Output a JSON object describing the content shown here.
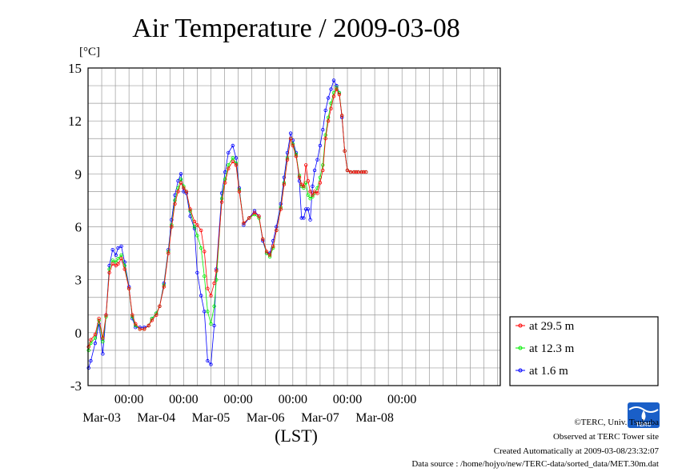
{
  "chart_data": {
    "type": "line",
    "title": "Air Temperature / 2009-03-08",
    "ylabel": "[°C]",
    "xlabel": "(LST)",
    "ylim": [
      -3,
      15
    ],
    "yticks": [
      -3,
      0,
      3,
      6,
      9,
      12,
      15
    ],
    "xlim": [
      -0.75,
      6.8
    ],
    "xticks": [
      {
        "x": 0,
        "time": "00:00",
        "date": "Mar-03"
      },
      {
        "x": 1,
        "time": "00:00",
        "date": "Mar-04"
      },
      {
        "x": 2,
        "time": "00:00",
        "date": "Mar-05"
      },
      {
        "x": 3,
        "time": "00:00",
        "date": "Mar-06"
      },
      {
        "x": 4,
        "time": "00:00",
        "date": "Mar-07"
      },
      {
        "x": 5,
        "time": "00:00",
        "date": "Mar-08"
      }
    ],
    "date_label_offset": 0.5,
    "grid": true,
    "legend_position": "right",
    "series": [
      {
        "name": "at 29.5 m",
        "color": "#ff0000",
        "x": [
          -0.74,
          -0.7,
          -0.62,
          -0.55,
          -0.48,
          -0.42,
          -0.36,
          -0.3,
          -0.24,
          -0.2,
          -0.14,
          -0.08,
          0,
          0.06,
          0.12,
          0.2,
          0.28,
          0.36,
          0.42,
          0.5,
          0.56,
          0.64,
          0.72,
          0.78,
          0.84,
          0.9,
          0.95,
          1.0,
          1.05,
          1.12,
          1.2,
          1.25,
          1.32,
          1.38,
          1.44,
          1.5,
          1.56,
          1.6,
          1.7,
          1.76,
          1.82,
          1.9,
          1.96,
          2.02,
          2.1,
          2.2,
          2.3,
          2.38,
          2.45,
          2.52,
          2.58,
          2.64,
          2.7,
          2.78,
          2.84,
          2.9,
          2.96,
          3.0,
          3.06,
          3.12,
          3.16,
          3.2,
          3.24,
          3.28,
          3.32,
          3.36,
          3.4,
          3.45,
          3.5,
          3.55,
          3.6,
          3.65,
          3.7,
          3.75,
          3.8,
          3.85,
          3.9,
          3.95,
          4.0,
          4.06,
          4.12,
          4.16,
          4.2,
          4.26,
          4.3,
          4.34
        ],
        "values": [
          -0.8,
          -0.4,
          -0.1,
          0.8,
          -0.3,
          1.0,
          3.4,
          3.9,
          3.8,
          3.9,
          4.2,
          3.6,
          2.5,
          1.0,
          0.5,
          0.2,
          0.2,
          0.4,
          0.7,
          1.0,
          1.5,
          2.6,
          4.5,
          6.0,
          7.3,
          8.0,
          8.5,
          8.2,
          8.0,
          7.0,
          6.3,
          6.1,
          5.8,
          4.6,
          2.5,
          2.1,
          2.8,
          3.5,
          7.4,
          8.5,
          9.3,
          9.7,
          9.5,
          8.0,
          6.2,
          6.5,
          6.8,
          6.6,
          5.3,
          4.6,
          4.4,
          4.9,
          5.8,
          7.0,
          8.4,
          9.8,
          11.0,
          10.6,
          10.0,
          8.8,
          8.4,
          8.3,
          9.5,
          8.6,
          8.0,
          7.8,
          8.0,
          7.9,
          8.5,
          9.2,
          11.0,
          12.0,
          12.7,
          13.4,
          13.8,
          13.5,
          12.3,
          10.3,
          9.2,
          9.1,
          9.1,
          9.1,
          9.1,
          9.1,
          9.1,
          9.1
        ]
      },
      {
        "name": "at 12.3 m",
        "color": "#00ee00",
        "x": [
          -0.74,
          -0.7,
          -0.62,
          -0.55,
          -0.48,
          -0.42,
          -0.36,
          -0.3,
          -0.24,
          -0.2,
          -0.14,
          -0.08,
          0,
          0.06,
          0.12,
          0.2,
          0.28,
          0.36,
          0.42,
          0.5,
          0.56,
          0.64,
          0.72,
          0.78,
          0.84,
          0.9,
          0.95,
          1.0,
          1.05,
          1.12,
          1.2,
          1.25,
          1.32,
          1.38,
          1.44,
          1.5,
          1.56,
          1.6,
          1.7,
          1.76,
          1.82,
          1.9,
          1.96,
          2.02,
          2.1,
          2.2,
          2.3,
          2.38,
          2.45,
          2.52,
          2.58,
          2.64,
          2.7,
          2.78,
          2.84,
          2.9,
          2.96,
          3.0,
          3.06,
          3.12,
          3.16,
          3.2,
          3.24,
          3.28,
          3.32,
          3.36,
          3.4,
          3.45,
          3.5,
          3.55,
          3.6,
          3.65,
          3.7,
          3.75,
          3.8,
          3.85,
          3.9,
          3.95,
          4.0,
          4.06,
          4.12,
          4.16,
          4.2,
          4.26,
          4.3,
          4.34
        ],
        "values": [
          -1.0,
          -0.6,
          -0.3,
          0.7,
          -0.5,
          0.9,
          3.6,
          4.1,
          4.0,
          4.2,
          4.4,
          3.8,
          2.5,
          0.9,
          0.4,
          0.2,
          0.2,
          0.4,
          0.8,
          1.1,
          1.5,
          2.7,
          4.6,
          6.1,
          7.5,
          8.2,
          8.7,
          8.3,
          8.0,
          6.9,
          6.0,
          5.5,
          4.8,
          3.2,
          1.2,
          0.5,
          1.5,
          3.0,
          7.6,
          8.7,
          9.5,
          9.9,
          9.6,
          8.1,
          6.2,
          6.5,
          6.7,
          6.5,
          5.3,
          4.5,
          4.3,
          4.8,
          5.8,
          7.1,
          8.5,
          9.9,
          11.0,
          10.7,
          10.1,
          8.9,
          8.3,
          8.2,
          8.5,
          7.8,
          7.6,
          7.7,
          7.9,
          8.2,
          8.8,
          9.5,
          11.2,
          12.2,
          13.0,
          13.6,
          13.9,
          13.6,
          12.3,
          10.3,
          9.2,
          9.1,
          9.1,
          9.1,
          9.1,
          9.1,
          9.1,
          9.1
        ]
      },
      {
        "name": "at 1.6 m",
        "color": "#0000ff",
        "x": [
          -0.74,
          -0.7,
          -0.62,
          -0.55,
          -0.48,
          -0.42,
          -0.36,
          -0.3,
          -0.24,
          -0.2,
          -0.14,
          -0.08,
          0,
          0.06,
          0.12,
          0.2,
          0.28,
          0.36,
          0.42,
          0.5,
          0.56,
          0.64,
          0.72,
          0.78,
          0.84,
          0.9,
          0.95,
          1.0,
          1.05,
          1.12,
          1.2,
          1.25,
          1.32,
          1.38,
          1.44,
          1.5,
          1.56,
          1.6,
          1.7,
          1.76,
          1.82,
          1.9,
          1.96,
          2.02,
          2.1,
          2.2,
          2.3,
          2.38,
          2.45,
          2.52,
          2.58,
          2.64,
          2.7,
          2.78,
          2.84,
          2.9,
          2.96,
          3.0,
          3.06,
          3.12,
          3.16,
          3.2,
          3.24,
          3.28,
          3.32,
          3.36,
          3.4,
          3.45,
          3.5,
          3.55,
          3.6,
          3.65,
          3.7,
          3.75,
          3.8,
          3.85,
          3.9,
          3.95,
          4.0,
          4.06,
          4.12,
          4.16,
          4.2,
          4.26,
          4.3,
          4.34
        ],
        "values": [
          -2.0,
          -1.6,
          -0.6,
          0.5,
          -1.2,
          1.0,
          3.8,
          4.7,
          4.4,
          4.8,
          4.9,
          4.0,
          2.6,
          0.8,
          0.3,
          0.3,
          0.3,
          0.4,
          0.8,
          1.1,
          1.5,
          2.8,
          4.7,
          6.4,
          7.8,
          8.6,
          9.0,
          8.0,
          7.9,
          6.6,
          5.9,
          3.4,
          2.1,
          1.2,
          -1.6,
          -1.8,
          0.4,
          3.6,
          7.9,
          9.1,
          10.2,
          10.6,
          9.9,
          8.2,
          6.1,
          6.5,
          6.9,
          6.6,
          5.2,
          4.5,
          4.5,
          5.2,
          6.0,
          7.3,
          8.8,
          10.2,
          11.3,
          10.9,
          10.2,
          8.6,
          6.5,
          6.5,
          7.0,
          7.0,
          6.4,
          8.3,
          9.2,
          9.8,
          10.6,
          11.5,
          12.6,
          13.3,
          13.8,
          14.3,
          14.0,
          13.6,
          12.2,
          10.3,
          9.2,
          9.1,
          9.1,
          9.1,
          9.1,
          9.1,
          9.1,
          9.1
        ]
      }
    ]
  },
  "footer": {
    "copyright": "©TERC, Univ. Tsukuba",
    "observed": "Observed at TERC Tower site",
    "created": "Created Automatically at 2009-03-08/23:32:07",
    "datasource": "Data source : /home/hojyo/new/TERC-data/sorted_data/MET.30m.dat",
    "logo_text": "TERC"
  }
}
